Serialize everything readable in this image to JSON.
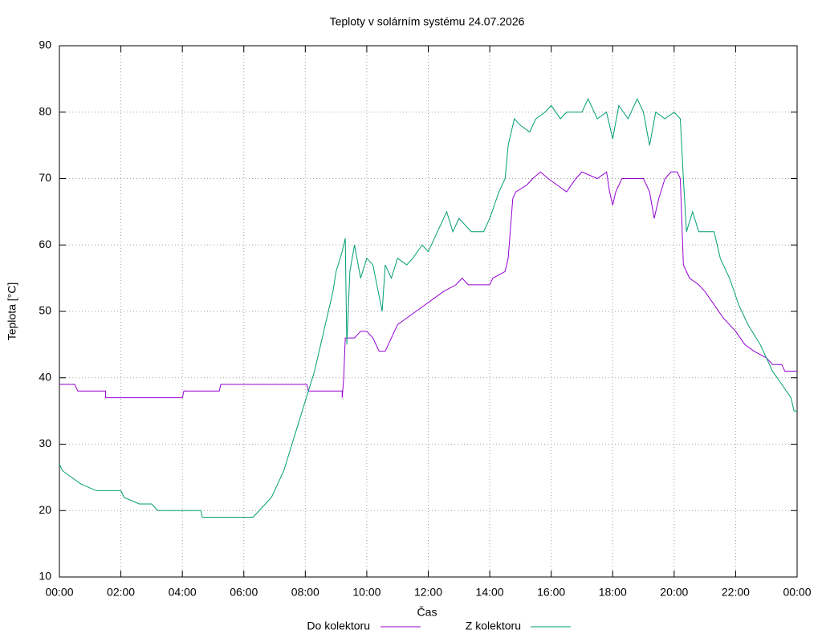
{
  "chart_data": {
    "type": "line",
    "title": "Teploty v solárním systému 24.07.2026",
    "xlabel": "Čas",
    "ylabel": "Teplota [°C]",
    "xlim": [
      0,
      24
    ],
    "ylim": [
      10,
      90
    ],
    "xticks": [
      {
        "value": 0,
        "label": "00:00"
      },
      {
        "value": 2,
        "label": "02:00"
      },
      {
        "value": 4,
        "label": "04:00"
      },
      {
        "value": 6,
        "label": "06:00"
      },
      {
        "value": 8,
        "label": "08:00"
      },
      {
        "value": 10,
        "label": "10:00"
      },
      {
        "value": 12,
        "label": "12:00"
      },
      {
        "value": 14,
        "label": "14:00"
      },
      {
        "value": 16,
        "label": "16:00"
      },
      {
        "value": 18,
        "label": "18:00"
      },
      {
        "value": 20,
        "label": "20:00"
      },
      {
        "value": 22,
        "label": "22:00"
      },
      {
        "value": 24,
        "label": "00:00"
      }
    ],
    "yticks": [
      10,
      20,
      30,
      40,
      50,
      60,
      70,
      80,
      90
    ],
    "grid": true,
    "legend": "bottom",
    "series": [
      {
        "name": "Do kolektoru",
        "color": "#9400d3",
        "x": [
          0,
          0.5,
          0.6,
          1.5,
          1.5,
          4.0,
          4.05,
          5.2,
          5.25,
          8.05,
          8.1,
          9.2,
          9.2,
          9.25,
          9.3,
          9.6,
          9.8,
          10.0,
          10.2,
          10.3,
          10.4,
          10.6,
          10.8,
          11.0,
          11.3,
          11.6,
          11.9,
          12.2,
          12.5,
          12.9,
          13.1,
          13.3,
          14.0,
          14.1,
          14.5,
          14.6,
          14.75,
          14.85,
          15.2,
          15.4,
          15.65,
          15.9,
          16.2,
          16.5,
          16.8,
          17.0,
          17.5,
          17.8,
          17.9,
          18.0,
          18.1,
          18.3,
          19.0,
          19.2,
          19.35,
          19.5,
          19.7,
          19.9,
          20.1,
          20.2,
          20.3,
          20.5,
          20.8,
          21.0,
          21.3,
          21.6,
          22.0,
          22.3,
          22.6,
          23.0,
          23.2,
          23.5,
          23.6,
          24
        ],
        "values": [
          39,
          39,
          38,
          38,
          37,
          37,
          38,
          38,
          39,
          39,
          38,
          38,
          37,
          40,
          46,
          46,
          47,
          47,
          46,
          45,
          44,
          44,
          46,
          48,
          49,
          50,
          51,
          52,
          53,
          54,
          55,
          54,
          54,
          55,
          56,
          58,
          67,
          68,
          69,
          70,
          71,
          70,
          69,
          68,
          70,
          71,
          70,
          71,
          68,
          66,
          68,
          70,
          70,
          68,
          64,
          67,
          70,
          71,
          71,
          70,
          57,
          55,
          54,
          53,
          51,
          49,
          47,
          45,
          44,
          43,
          42,
          42,
          41,
          41
        ]
      },
      {
        "name": "Z kolektoru",
        "color": "#009e73",
        "x": [
          0,
          0.1,
          0.4,
          0.7,
          1.2,
          2.0,
          2.1,
          2.6,
          3.0,
          3.2,
          4.6,
          4.65,
          6.3,
          6.5,
          6.7,
          6.9,
          7.1,
          7.3,
          7.5,
          7.7,
          7.9,
          8.1,
          8.3,
          8.5,
          8.7,
          8.9,
          9.0,
          9.2,
          9.3,
          9.35,
          9.45,
          9.6,
          9.8,
          10.0,
          10.2,
          10.5,
          10.6,
          10.8,
          11.0,
          11.3,
          11.5,
          11.8,
          12.0,
          12.3,
          12.6,
          12.8,
          13.0,
          13.4,
          13.8,
          14.0,
          14.3,
          14.5,
          14.6,
          14.8,
          15.0,
          15.3,
          15.5,
          15.8,
          16.0,
          16.3,
          16.5,
          17.0,
          17.2,
          17.5,
          17.8,
          18.0,
          18.2,
          18.5,
          18.8,
          19.0,
          19.2,
          19.4,
          19.7,
          20.0,
          20.2,
          20.3,
          20.4,
          20.6,
          20.8,
          21.3,
          21.5,
          21.8,
          22.1,
          22.4,
          22.8,
          23.0,
          23.2,
          23.5,
          23.8,
          23.9,
          24
        ],
        "values": [
          27,
          26,
          25,
          24,
          23,
          23,
          22,
          21,
          21,
          20,
          20,
          19,
          19,
          20,
          21,
          22,
          24,
          26,
          29,
          32,
          35,
          38,
          41,
          45,
          49,
          53,
          56,
          59,
          61,
          45,
          56,
          60,
          55,
          58,
          57,
          50,
          57,
          55,
          58,
          57,
          58,
          60,
          59,
          62,
          65,
          62,
          64,
          62,
          62,
          64,
          68,
          70,
          75,
          79,
          78,
          77,
          79,
          80,
          81,
          79,
          80,
          80,
          82,
          79,
          80,
          76,
          81,
          79,
          82,
          80,
          75,
          80,
          79,
          80,
          79,
          70,
          62,
          65,
          62,
          62,
          58,
          55,
          51,
          48,
          45,
          43,
          41,
          39,
          37,
          35,
          35
        ]
      }
    ]
  }
}
